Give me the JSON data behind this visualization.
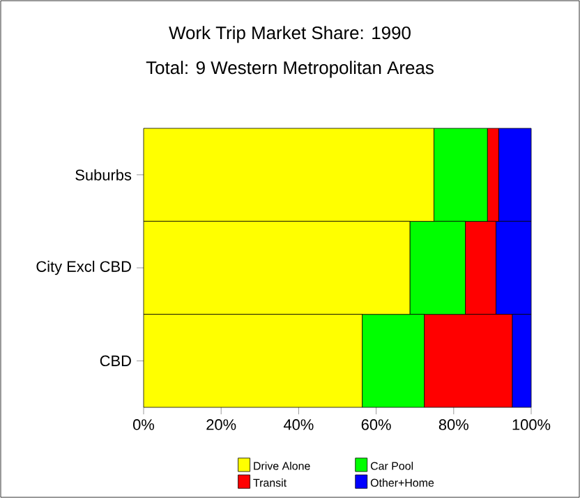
{
  "chart_data": {
    "type": "bar",
    "orientation": "horizontal",
    "stacked": true,
    "title": "Work Trip Market Share: 1990",
    "subtitle": "Total: 9 Western Metropolitan Areas",
    "categories": [
      "Suburbs",
      "City Excl CBD",
      "CBD"
    ],
    "series": [
      {
        "name": "Drive Alone",
        "color": "#ffff00",
        "values": [
          74.9,
          68.7,
          56.4
        ]
      },
      {
        "name": "Car Pool",
        "color": "#00ff00",
        "values": [
          13.8,
          14.3,
          16.0
        ]
      },
      {
        "name": "Transit",
        "color": "#ff0000",
        "values": [
          2.9,
          7.9,
          22.7
        ]
      },
      {
        "name": "Other+Home",
        "color": "#0000ff",
        "values": [
          8.4,
          9.1,
          4.9
        ]
      }
    ],
    "xlim": [
      0,
      100
    ],
    "xticks": [
      {
        "value": 0,
        "label": "0%"
      },
      {
        "value": 20,
        "label": "20%"
      },
      {
        "value": 40,
        "label": "40%"
      },
      {
        "value": 60,
        "label": "60%"
      },
      {
        "value": 80,
        "label": "80%"
      },
      {
        "value": 100,
        "label": "100%"
      }
    ],
    "legend": "bottom",
    "grid": false
  }
}
